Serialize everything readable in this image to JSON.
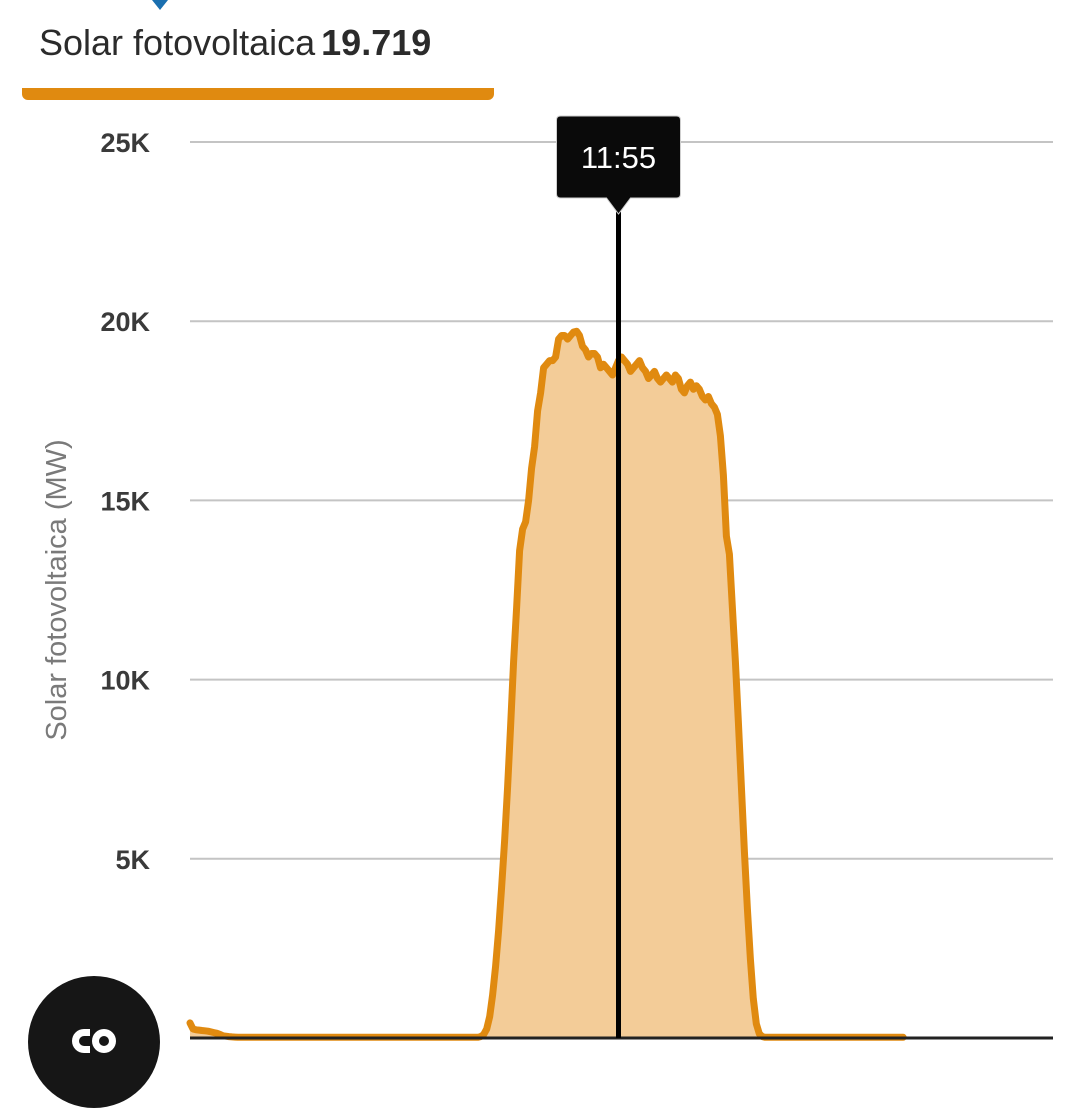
{
  "legend": {
    "series_name": "Solar fotovoltaica",
    "current_value": "19.719"
  },
  "tooltip": {
    "time": "11:55"
  },
  "colors": {
    "series": "#e08a10",
    "fill": "#f3cc98",
    "grid": "#c4c4c4",
    "tooltip_bg": "#0a0a0a",
    "tooltip_text": "#ffffff",
    "tick_text": "#3a3a3a",
    "axis_title_text": "#7a7a7a",
    "top_caret": "#1a6fb0"
  },
  "fab": {
    "icon": "cocreate-link-icon"
  },
  "chart_data": {
    "type": "area",
    "ylabel": "Solar fotovoltaica (MW)",
    "ylim": [
      0,
      25000
    ],
    "y_ticks": [
      5000,
      10000,
      15000,
      20000,
      25000
    ],
    "y_tick_labels": [
      "5K",
      "10K",
      "15K",
      "20K",
      "25K"
    ],
    "grid": true,
    "series": [
      {
        "name": "Solar fotovoltaica",
        "x_min": 0,
        "x_max": 288,
        "values": [
          420,
          250,
          230,
          220,
          210,
          200,
          190,
          170,
          150,
          130,
          100,
          60,
          50,
          40,
          30,
          25,
          20,
          20,
          20,
          20,
          20,
          20,
          20,
          20,
          20,
          20,
          20,
          20,
          20,
          20,
          20,
          20,
          20,
          20,
          20,
          20,
          20,
          20,
          20,
          20,
          20,
          20,
          20,
          20,
          20,
          20,
          20,
          20,
          20,
          20,
          20,
          20,
          20,
          20,
          20,
          20,
          20,
          20,
          20,
          20,
          20,
          20,
          20,
          20,
          20,
          20,
          20,
          20,
          20,
          20,
          20,
          20,
          20,
          20,
          20,
          20,
          20,
          20,
          20,
          20,
          20,
          20,
          20,
          20,
          20,
          20,
          20,
          20,
          20,
          20,
          20,
          20,
          20,
          20,
          20,
          20,
          20,
          40,
          100,
          250,
          600,
          1200,
          2000,
          3000,
          4200,
          5500,
          7000,
          8700,
          10500,
          12000,
          13600,
          14200,
          14400,
          15000,
          15900,
          16500,
          17500,
          18000,
          18700,
          18800,
          18900,
          18900,
          19000,
          19500,
          19600,
          19600,
          19500,
          19600,
          19700,
          19719,
          19600,
          19300,
          19200,
          19000,
          19100,
          19100,
          19000,
          18700,
          18800,
          18700,
          18600,
          18500,
          18700,
          18900,
          19000,
          18900,
          18800,
          18600,
          18700,
          18800,
          18900,
          18700,
          18600,
          18400,
          18500,
          18600,
          18400,
          18300,
          18400,
          18500,
          18400,
          18300,
          18500,
          18400,
          18100,
          18000,
          18200,
          18300,
          18100,
          18200,
          18100,
          17900,
          17800,
          17900,
          17700,
          17600,
          17400,
          16800,
          15700,
          14000,
          13500,
          12000,
          10500,
          8800,
          7000,
          5200,
          3600,
          2200,
          1100,
          400,
          120,
          40,
          20,
          20,
          20,
          20,
          20,
          20,
          20,
          20,
          20,
          20,
          20,
          20,
          20,
          20,
          20,
          20,
          20,
          20,
          20,
          20,
          20,
          20,
          20,
          20,
          20,
          20,
          20,
          20,
          20,
          20,
          20,
          20,
          20,
          20,
          20,
          20,
          20,
          20,
          20,
          20,
          20,
          20,
          20,
          20,
          20,
          20,
          20
        ]
      }
    ],
    "cursor_index": 143
  }
}
